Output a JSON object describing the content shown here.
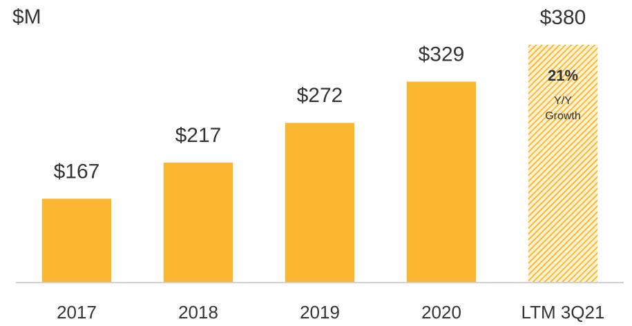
{
  "chart_data": {
    "type": "bar",
    "ylabel": "$M",
    "categories": [
      "2017",
      "2018",
      "2019",
      "2020",
      "LTM 3Q21"
    ],
    "values": [
      167,
      217,
      272,
      329,
      380
    ],
    "value_labels": [
      "$167",
      "$217",
      "$272",
      "$329",
      "$380"
    ],
    "hatched": [
      false,
      false,
      false,
      false,
      true
    ],
    "color": "#fbb731",
    "ylim": [
      51,
      400
    ],
    "annotation": {
      "headline": "21%",
      "lines": [
        "Y/Y",
        "Growth"
      ]
    }
  }
}
